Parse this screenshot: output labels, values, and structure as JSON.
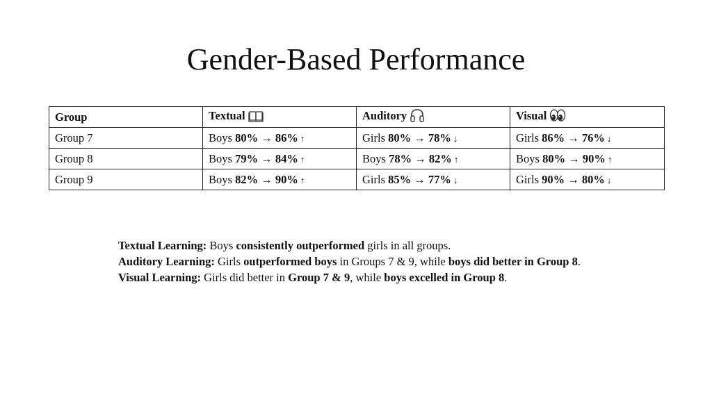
{
  "title": "Gender-Based Performance",
  "table": {
    "headers": [
      "Group",
      "Textual",
      "Auditory",
      "Visual"
    ],
    "header_icons": [
      "",
      "book-icon",
      "headphones-icon",
      "eyes-icon"
    ],
    "rows": [
      {
        "group": "Group 7",
        "cells": [
          {
            "gender": "Boys",
            "change": "80% → 86%",
            "trend": "↑"
          },
          {
            "gender": "Girls",
            "change": "80% → 78%",
            "trend": "↓"
          },
          {
            "gender": "Girls",
            "change": "86% → 76%",
            "trend": "↓"
          }
        ]
      },
      {
        "group": "Group 8",
        "cells": [
          {
            "gender": "Boys",
            "change": "79% → 84%",
            "trend": "↑"
          },
          {
            "gender": "Boys",
            "change": "78% → 82%",
            "trend": "↑"
          },
          {
            "gender": "Boys",
            "change": "80% → 90%",
            "trend": "↑"
          }
        ]
      },
      {
        "group": "Group 9",
        "cells": [
          {
            "gender": "Boys",
            "change": "82% → 90%",
            "trend": "↑"
          },
          {
            "gender": "Girls",
            "change": "85% → 77%",
            "trend": "↓"
          },
          {
            "gender": "Girls",
            "change": "90% → 80%",
            "trend": "↓"
          }
        ]
      }
    ]
  },
  "notes": {
    "textual": {
      "label": "Textual Learning:",
      "t1": "Boys",
      "b1": "consistently outperformed",
      "t2": "girls in all groups."
    },
    "auditory": {
      "label": "Auditory Learning:",
      "t1": "Girls",
      "b1": "outperformed boys",
      "t2": "in Groups 7 & 9, while",
      "b2": "boys did better in Group 8",
      "t3": "."
    },
    "visual": {
      "label": "Visual Learning:",
      "t1": "Girls did better in",
      "b1": "Group 7 & 9",
      "t2": ", while",
      "b2": "boys excelled in Group 8",
      "t3": "."
    }
  }
}
